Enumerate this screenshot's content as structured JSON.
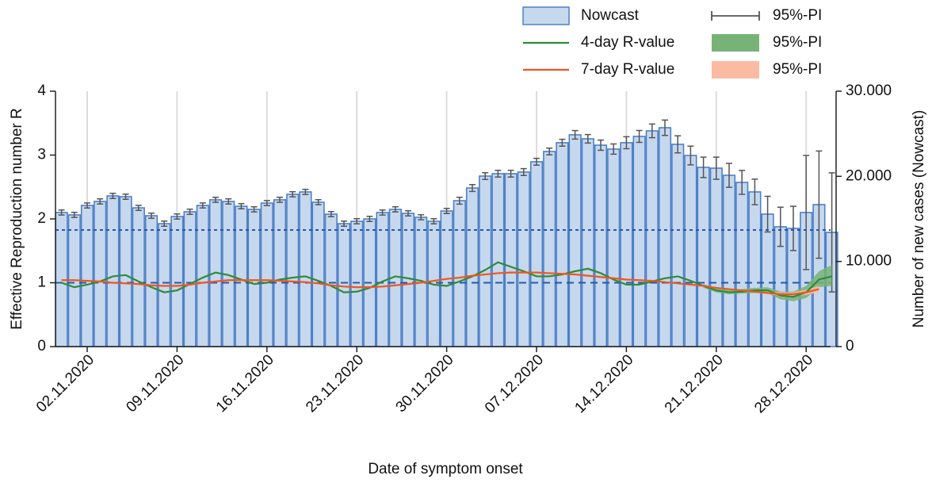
{
  "chart_data": {
    "type": "bar_line",
    "x_label": "Date of symptom onset",
    "y_label": "Effective Reproduction number R",
    "y2_label": "Number of new cases (Nowcast)",
    "x": [
      "2020-10-31",
      "2020-11-01",
      "2020-11-02",
      "2020-11-03",
      "2020-11-04",
      "2020-11-05",
      "2020-11-06",
      "2020-11-07",
      "2020-11-08",
      "2020-11-09",
      "2020-11-10",
      "2020-11-11",
      "2020-11-12",
      "2020-11-13",
      "2020-11-14",
      "2020-11-15",
      "2020-11-16",
      "2020-11-17",
      "2020-11-18",
      "2020-11-19",
      "2020-11-20",
      "2020-11-21",
      "2020-11-22",
      "2020-11-23",
      "2020-11-24",
      "2020-11-25",
      "2020-11-26",
      "2020-11-27",
      "2020-11-28",
      "2020-11-29",
      "2020-11-30",
      "2020-12-01",
      "2020-12-02",
      "2020-12-03",
      "2020-12-04",
      "2020-12-05",
      "2020-12-06",
      "2020-12-07",
      "2020-12-08",
      "2020-12-09",
      "2020-12-10",
      "2020-12-11",
      "2020-12-12",
      "2020-12-13",
      "2020-12-14",
      "2020-12-15",
      "2020-12-16",
      "2020-12-17",
      "2020-12-18",
      "2020-12-19",
      "2020-12-20",
      "2020-12-21",
      "2020-12-22",
      "2020-12-23",
      "2020-12-24",
      "2020-12-25",
      "2020-12-26",
      "2020-12-27",
      "2020-12-28",
      "2020-12-29",
      "2020-12-30"
    ],
    "xticks": [
      {
        "value": "2020-11-02",
        "label": "02.11.2020"
      },
      {
        "value": "2020-11-09",
        "label": "09.11.2020"
      },
      {
        "value": "2020-11-16",
        "label": "16.11.2020"
      },
      {
        "value": "2020-11-23",
        "label": "23.11.2020"
      },
      {
        "value": "2020-11-30",
        "label": "30.11.2020"
      },
      {
        "value": "2020-12-07",
        "label": "07.12.2020"
      },
      {
        "value": "2020-12-14",
        "label": "14.12.2020"
      },
      {
        "value": "2020-12-21",
        "label": "21.12.2020"
      },
      {
        "value": "2020-12-28",
        "label": "28.12.2020"
      }
    ],
    "ylim": [
      0,
      4
    ],
    "yticks": [
      0,
      1,
      2,
      3,
      4
    ],
    "y2lim": [
      0,
      30000
    ],
    "y2ticks": [
      0,
      {
        "value": 10000,
        "label": "10.000"
      },
      {
        "value": 20000,
        "label": "20.000"
      },
      {
        "value": 30000,
        "label": "30.000"
      }
    ],
    "x_grid": true,
    "hlines": [
      {
        "axis": "y",
        "value": 1,
        "color": "#2a57a6"
      },
      {
        "axis": "y2",
        "value": 13700,
        "color": "#2a57a6"
      }
    ],
    "series": [
      {
        "name": "Nowcast",
        "type": "bar",
        "axis": "y2",
        "color": "#c6d8ee",
        "edge_color": "#4f80c6",
        "pi_name": "95%-PI",
        "pi_color": "#555555",
        "values": [
          15750,
          15470,
          16580,
          17050,
          17700,
          17610,
          16300,
          15370,
          14440,
          15280,
          15840,
          16580,
          17240,
          17050,
          16490,
          16120,
          16860,
          17240,
          17890,
          18170,
          16960,
          15560,
          14440,
          14720,
          15000,
          15750,
          16120,
          15650,
          15190,
          14720,
          15930,
          17140,
          18630,
          20030,
          20310,
          20310,
          20500,
          21710,
          22920,
          23950,
          24880,
          24410,
          23660,
          23200,
          23950,
          24690,
          25340,
          25710,
          23760,
          22450,
          21060,
          20960,
          20120,
          19290,
          18170,
          15560,
          14070,
          13880,
          15750,
          16680,
          13420
        ],
        "errors": [
          300,
          300,
          300,
          300,
          300,
          300,
          300,
          300,
          300,
          300,
          300,
          300,
          300,
          300,
          300,
          300,
          300,
          300,
          300,
          300,
          300,
          300,
          300,
          300,
          300,
          300,
          300,
          300,
          300,
          300,
          300,
          400,
          400,
          400,
          400,
          400,
          400,
          400,
          400,
          400,
          500,
          500,
          600,
          600,
          700,
          700,
          800,
          900,
          1000,
          1100,
          1200,
          1300,
          1400,
          1400,
          1500,
          2100,
          2300,
          2600,
          6700,
          6300,
          7000
        ]
      },
      {
        "name": "4-day R-value",
        "type": "line",
        "axis": "y",
        "color": "#2e8b3a",
        "pi_name": "95%-PI",
        "pi_color": "#77b377",
        "values": [
          1.0,
          0.93,
          0.97,
          1.02,
          1.1,
          1.12,
          1.02,
          0.93,
          0.85,
          0.88,
          0.98,
          1.08,
          1.16,
          1.12,
          1.05,
          0.98,
          1.0,
          1.05,
          1.08,
          1.1,
          1.03,
          0.95,
          0.85,
          0.86,
          0.92,
          1.02,
          1.1,
          1.07,
          1.03,
          0.97,
          0.95,
          1.02,
          1.1,
          1.2,
          1.32,
          1.25,
          1.18,
          1.1,
          1.1,
          1.13,
          1.18,
          1.22,
          1.15,
          1.05,
          0.97,
          0.97,
          1.02,
          1.07,
          1.1,
          1.03,
          0.95,
          0.88,
          0.85,
          0.86,
          0.88,
          0.88,
          0.8,
          0.78,
          0.85,
          1.05,
          1.1
        ],
        "lower": [
          null,
          null,
          null,
          null,
          null,
          null,
          null,
          null,
          null,
          null,
          null,
          null,
          null,
          null,
          null,
          null,
          null,
          null,
          null,
          null,
          null,
          null,
          null,
          null,
          null,
          null,
          null,
          null,
          null,
          null,
          null,
          null,
          null,
          null,
          null,
          null,
          null,
          null,
          null,
          null,
          null,
          null,
          null,
          null,
          null,
          null,
          null,
          null,
          null,
          null,
          0.92,
          0.85,
          0.82,
          0.83,
          0.84,
          0.83,
          0.74,
          0.71,
          0.76,
          0.93,
          0.95
        ],
        "upper": [
          null,
          null,
          null,
          null,
          null,
          null,
          null,
          null,
          null,
          null,
          null,
          null,
          null,
          null,
          null,
          null,
          null,
          null,
          null,
          null,
          null,
          null,
          null,
          null,
          null,
          null,
          null,
          null,
          null,
          null,
          null,
          null,
          null,
          null,
          null,
          null,
          null,
          null,
          null,
          null,
          null,
          null,
          null,
          null,
          null,
          null,
          null,
          null,
          null,
          null,
          0.98,
          0.91,
          0.89,
          0.9,
          0.92,
          0.93,
          0.86,
          0.86,
          0.95,
          1.18,
          1.28
        ]
      },
      {
        "name": "7-day R-value",
        "type": "line",
        "axis": "y",
        "color": "#f0561c",
        "pi_name": "95%-PI",
        "pi_color": "#fbbba2",
        "values": [
          1.04,
          1.04,
          1.03,
          1.02,
          1.0,
          0.99,
          0.98,
          0.96,
          0.95,
          0.95,
          0.97,
          1.0,
          1.02,
          1.04,
          1.04,
          1.04,
          1.04,
          1.03,
          1.02,
          1.01,
          0.99,
          0.96,
          0.94,
          0.93,
          0.93,
          0.94,
          0.96,
          0.98,
          1.0,
          1.03,
          1.06,
          1.08,
          1.11,
          1.13,
          1.15,
          1.16,
          1.16,
          1.16,
          1.15,
          1.14,
          1.13,
          1.11,
          1.09,
          1.07,
          1.05,
          1.04,
          1.03,
          1.01,
          0.99,
          0.97,
          0.95,
          0.92,
          0.9,
          0.88,
          0.86,
          0.84,
          0.82,
          0.82,
          0.85,
          0.9,
          null
        ],
        "lower": [
          null,
          null,
          null,
          null,
          null,
          null,
          null,
          null,
          null,
          null,
          null,
          null,
          null,
          null,
          null,
          null,
          null,
          null,
          null,
          null,
          null,
          null,
          null,
          null,
          null,
          null,
          null,
          null,
          null,
          null,
          null,
          null,
          null,
          null,
          null,
          null,
          null,
          null,
          null,
          null,
          null,
          null,
          null,
          null,
          null,
          null,
          null,
          null,
          null,
          null,
          0.94,
          0.91,
          0.89,
          0.87,
          0.85,
          0.82,
          0.8,
          0.79,
          0.81,
          0.85,
          null
        ],
        "upper": [
          null,
          null,
          null,
          null,
          null,
          null,
          null,
          null,
          null,
          null,
          null,
          null,
          null,
          null,
          null,
          null,
          null,
          null,
          null,
          null,
          null,
          null,
          null,
          null,
          null,
          null,
          null,
          null,
          null,
          null,
          null,
          null,
          null,
          null,
          null,
          null,
          null,
          null,
          null,
          null,
          null,
          null,
          null,
          null,
          null,
          null,
          null,
          null,
          null,
          null,
          0.96,
          0.93,
          0.91,
          0.89,
          0.87,
          0.86,
          0.85,
          0.85,
          0.89,
          0.95,
          null
        ]
      }
    ]
  }
}
